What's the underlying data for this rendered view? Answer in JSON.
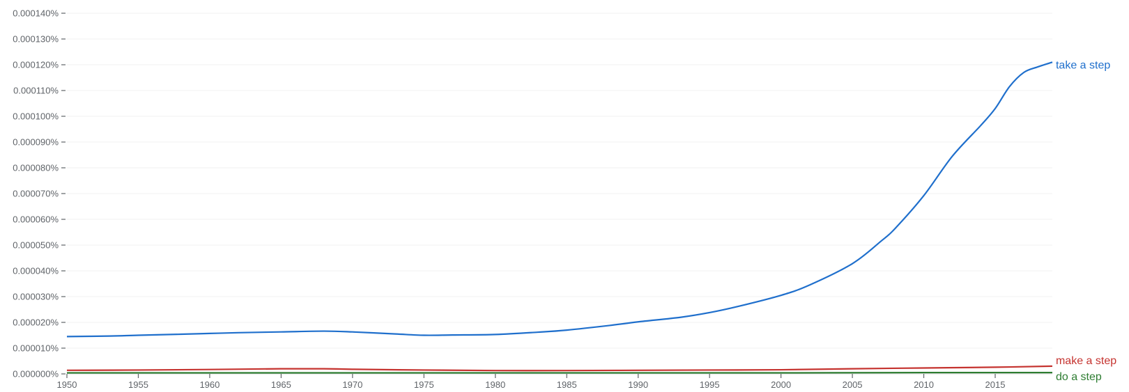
{
  "chart_data": {
    "type": "line",
    "title": "",
    "xlabel": "",
    "ylabel": "",
    "xlim": [
      1950,
      2019
    ],
    "ylim": [
      0,
      0.00014
    ],
    "y_unit": "%",
    "grid": true,
    "legend": "inline labels at right end of lines",
    "x_ticks": [
      "1950",
      "1955",
      "1960",
      "1965",
      "1970",
      "1975",
      "1980",
      "1985",
      "1990",
      "1995",
      "2000",
      "2005",
      "2010",
      "2015"
    ],
    "y_ticks": [
      "0.000000%",
      "0.000010%",
      "0.000020%",
      "0.000030%",
      "0.000040%",
      "0.000050%",
      "0.000060%",
      "0.000070%",
      "0.000080%",
      "0.000090%",
      "0.000100%",
      "0.000110%",
      "0.000120%",
      "0.000130%",
      "0.000140%"
    ],
    "series": [
      {
        "name": "take a step",
        "color": "#1f6fcc",
        "x": [
          1950,
          1953,
          1955,
          1958,
          1960,
          1962,
          1965,
          1968,
          1970,
          1973,
          1975,
          1977,
          1980,
          1983,
          1985,
          1988,
          1990,
          1993,
          1995,
          1997,
          2000,
          2002,
          2005,
          2007,
          2008,
          2010,
          2012,
          2014,
          2015,
          2016,
          2017,
          2018,
          2019
        ],
        "y": [
          1.45e-05,
          1.47e-05,
          1.5e-05,
          1.54e-05,
          1.57e-05,
          1.6e-05,
          1.63e-05,
          1.66e-05,
          1.63e-05,
          1.55e-05,
          1.5e-05,
          1.51e-05,
          1.53e-05,
          1.62e-05,
          1.7e-05,
          1.88e-05,
          2.02e-05,
          2.2e-05,
          2.38e-05,
          2.62e-05,
          3.05e-05,
          3.45e-05,
          4.28e-05,
          5.15e-05,
          5.65e-05,
          6.92e-05,
          8.45e-05,
          9.65e-05,
          0.000103,
          0.0001115,
          0.000117,
          0.0001192,
          0.000121
        ]
      },
      {
        "name": "make a step",
        "color": "#c5332f",
        "x": [
          1950,
          1955,
          1960,
          1965,
          1968,
          1970,
          1975,
          1980,
          1985,
          1990,
          1995,
          2000,
          2005,
          2010,
          2015,
          2019
        ],
        "y": [
          1.4e-06,
          1.5e-06,
          1.7e-06,
          2e-06,
          2e-06,
          1.8e-06,
          1.5e-06,
          1.3e-06,
          1.3e-06,
          1.4e-06,
          1.5e-06,
          1.6e-06,
          2e-06,
          2.3e-06,
          2.6e-06,
          3e-06
        ]
      },
      {
        "name": "do a step",
        "color": "#2e7d32",
        "x": [
          1950,
          1960,
          1970,
          1980,
          1990,
          2000,
          2010,
          2019
        ],
        "y": [
          4e-07,
          4e-07,
          4e-07,
          4e-07,
          4e-07,
          4e-07,
          5e-07,
          5e-07
        ]
      }
    ]
  }
}
